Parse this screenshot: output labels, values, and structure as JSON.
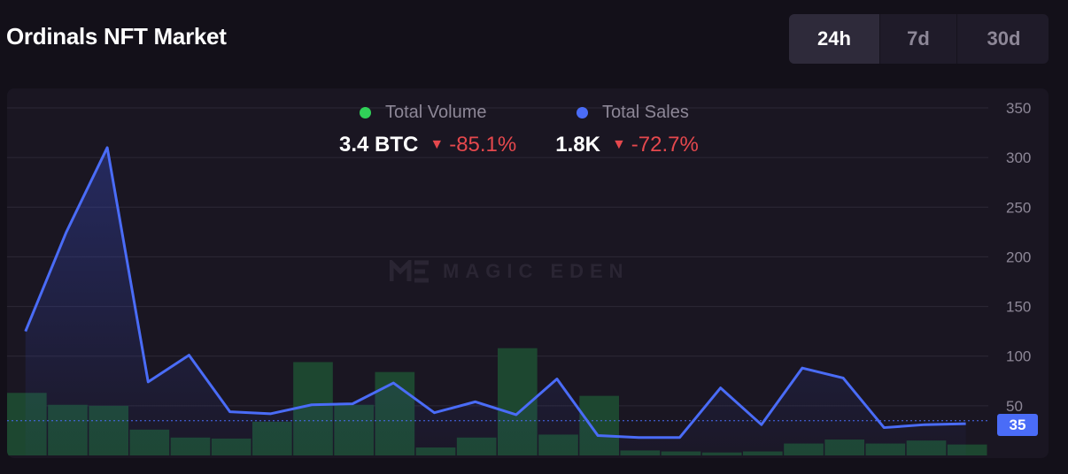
{
  "header": {
    "title": "Ordinals NFT Market"
  },
  "range_tabs": [
    {
      "label": "24h",
      "active": true
    },
    {
      "label": "7d",
      "active": false
    },
    {
      "label": "30d",
      "active": false
    }
  ],
  "legend": {
    "volume": {
      "label": "Total Volume",
      "color": "#30d158"
    },
    "sales": {
      "label": "Total Sales",
      "color": "#4a6cf7"
    }
  },
  "stats": {
    "volume": {
      "value": "3.4 BTC",
      "change": "-85.1%",
      "direction": "down"
    },
    "sales": {
      "value": "1.8K",
      "change": "-72.7%",
      "direction": "down"
    }
  },
  "watermark": {
    "text": "MAGIC EDEN"
  },
  "current_value_badge": "35",
  "chart_data": {
    "type": "line+bar",
    "title": "",
    "xlabel": "",
    "ylabel": "",
    "ylim": [
      0,
      350
    ],
    "y_ticks": [
      50,
      100,
      150,
      200,
      250,
      300,
      350
    ],
    "grid": true,
    "legend_position": "top-center",
    "series": [
      {
        "name": "Total Sales",
        "type": "line",
        "color": "#4a6cf7",
        "values": [
          125,
          225,
          310,
          74,
          101,
          44,
          42,
          51,
          52,
          73,
          43,
          54,
          41,
          77,
          20,
          18,
          18,
          68,
          31,
          88,
          78,
          28,
          31,
          32
        ]
      },
      {
        "name": "Total Volume",
        "type": "bar",
        "color": "#1d4730",
        "values": [
          63,
          51,
          50,
          26,
          18,
          17,
          34,
          94,
          51,
          84,
          8,
          18,
          108,
          21,
          60,
          5,
          4,
          3,
          4,
          12,
          16,
          12,
          15,
          11
        ]
      }
    ],
    "current_value": 35
  }
}
